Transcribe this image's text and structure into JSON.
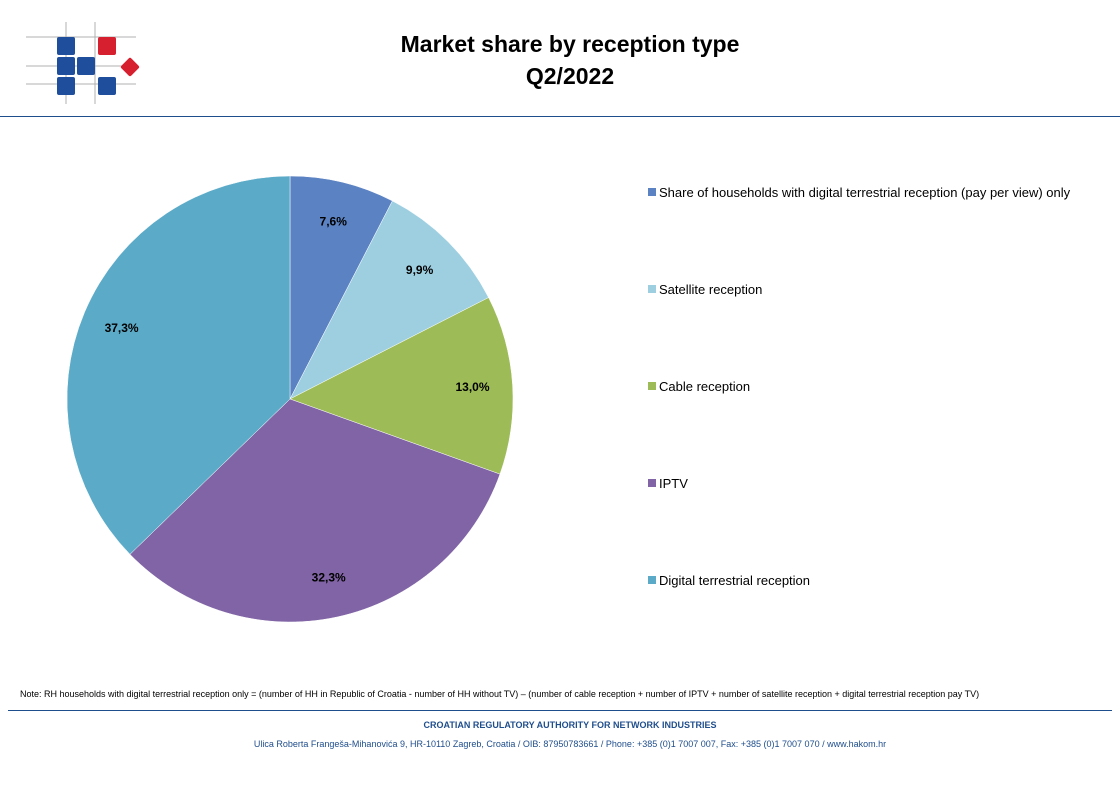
{
  "header": {
    "title_line1": "Market share by reception type",
    "title_line2": "Q2/2022",
    "logo_name": "hakom-logo",
    "colors": {
      "logo_blue": "#1f4e9c",
      "logo_red": "#d6202f",
      "rule": "#1f4e8c"
    }
  },
  "chart_data": {
    "type": "pie",
    "title": "Market share by reception type Q2/2022",
    "legend_position": "right",
    "slices": [
      {
        "label": "Share of households with digital terrestrial reception (pay per view) only",
        "value": 7.6,
        "display": "7,6%",
        "color": "#5b82c2"
      },
      {
        "label": "Satellite reception",
        "value": 9.9,
        "display": "9,9%",
        "color": "#9dcfe1"
      },
      {
        "label": "Cable reception",
        "value": 13.0,
        "display": "13,0%",
        "color": "#9dbb56"
      },
      {
        "label": "IPTV",
        "value": 32.3,
        "display": "32,3%",
        "color": "#8064a5"
      },
      {
        "label": "Digital terrestrial reception",
        "value": 37.3,
        "display": "37,3%",
        "color": "#5aaac8"
      }
    ]
  },
  "note": "Note: RH households with digital terrestrial reception only = (number of HH in Republic of Croatia - number of HH without TV) – (number of cable reception + number of IPTV + number of satellite reception + digital terrestrial reception pay TV)",
  "footer": {
    "organization": "CROATIAN REGULATORY AUTHORITY FOR NETWORK INDUSTRIES",
    "address": "Ulica Roberta Frangeša-Mihanovića 9, HR-10110 Zagreb, Croatia / OIB: 87950783661 / Phone: +385 (0)1 7007 007, Fax: +385 (0)1 7007 070 / www.hakom.hr"
  }
}
